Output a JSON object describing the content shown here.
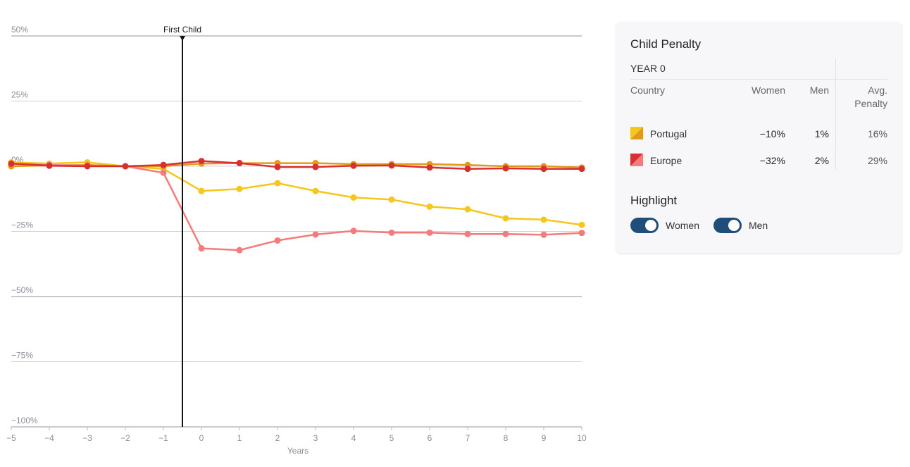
{
  "chart_data": {
    "type": "line",
    "xlabel": "Years",
    "x": [
      -5,
      -4,
      -3,
      -2,
      -1,
      0,
      1,
      2,
      3,
      4,
      5,
      6,
      7,
      8,
      9,
      10
    ],
    "xticks": [
      "−5",
      "−4",
      "−3",
      "−2",
      "−1",
      "0",
      "1",
      "2",
      "3",
      "4",
      "5",
      "6",
      "7",
      "8",
      "9",
      "10"
    ],
    "ylim": [
      -100,
      50
    ],
    "yticks": [
      {
        "value": 50,
        "label": "50%"
      },
      {
        "value": 25,
        "label": "25%"
      },
      {
        "value": 0,
        "label": "0%"
      },
      {
        "value": -25,
        "label": "−25%"
      },
      {
        "value": -50,
        "label": "−50%"
      },
      {
        "value": -75,
        "label": "−75%"
      },
      {
        "value": -100,
        "label": "−100%"
      }
    ],
    "grid": true,
    "marker": {
      "x": -0.5,
      "label": "First Child"
    },
    "series": [
      {
        "country": "Portugal",
        "group": "Women",
        "color": "#f5c71a",
        "values": [
          1.5,
          1.0,
          1.5,
          0,
          -1,
          -9.5,
          -8.7,
          -6.5,
          -9.5,
          -12,
          -12.8,
          -15.5,
          -16.5,
          -20,
          -20.5,
          -22.5
        ]
      },
      {
        "country": "Portugal",
        "group": "Men",
        "color": "#e39a1c",
        "values": [
          0,
          0.3,
          0.5,
          0,
          0,
          1.0,
          1.2,
          1.2,
          1.2,
          0.8,
          0.8,
          0.8,
          0.5,
          0,
          0,
          -0.5
        ]
      },
      {
        "country": "Europe",
        "group": "Women",
        "color": "#f47b7b",
        "values": [
          1.0,
          0.5,
          0.3,
          0,
          -2.5,
          -31.5,
          -32.2,
          -28.5,
          -26.2,
          -24.8,
          -25.5,
          -25.5,
          -26,
          -26,
          -26.3,
          -25.6
        ]
      },
      {
        "country": "Europe",
        "group": "Men",
        "color": "#d83030",
        "values": [
          1.0,
          0.2,
          0,
          0,
          0.5,
          2.0,
          1.2,
          -0.3,
          -0.3,
          0.2,
          0.3,
          -0.5,
          -1,
          -0.8,
          -1.0,
          -1.0
        ]
      }
    ]
  },
  "panel": {
    "title": "Child Penalty",
    "year_label": "YEAR 0",
    "headers": {
      "country": "Country",
      "women": "Women",
      "men": "Men",
      "avg_line1": "Avg.",
      "avg_line2": "Penalty"
    },
    "rows": [
      {
        "country": "Portugal",
        "women": "−10%",
        "men": "1%",
        "avg": "16%",
        "color_a": "#f5c71a",
        "color_b": "#e39a1c"
      },
      {
        "country": "Europe",
        "women": "−32%",
        "men": "2%",
        "avg": "29%",
        "color_a": "#f47b7b",
        "color_b": "#d83030"
      }
    ],
    "highlight_title": "Highlight",
    "toggles": [
      {
        "label": "Women",
        "on": true
      },
      {
        "label": "Men",
        "on": true
      }
    ]
  }
}
